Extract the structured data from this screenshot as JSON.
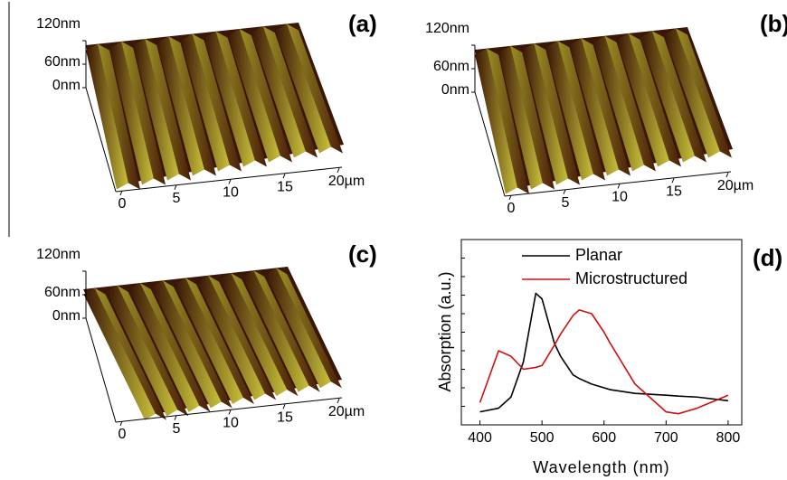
{
  "panels": [
    {
      "label": "(a)",
      "z_ticks": [
        "120nm",
        "60nm",
        "0nm"
      ],
      "x_ticks": [
        "0",
        "5",
        "10",
        "15",
        "20µm"
      ]
    },
    {
      "label": "(b)",
      "z_ticks": [
        "120nm",
        "60nm",
        "0nm"
      ],
      "x_ticks": [
        "0",
        "5",
        "10",
        "15",
        "20µm"
      ]
    },
    {
      "label": "(c)",
      "z_ticks": [
        "120nm",
        "60nm",
        "0nm"
      ],
      "x_ticks": [
        "0",
        "5",
        "10",
        "15",
        "20µm"
      ]
    }
  ],
  "chart_data": {
    "type": "line",
    "label": "(d)",
    "xlabel": "Wavelength (nm)",
    "ylabel": "Absorption (a.u.)",
    "xlim": [
      370,
      822
    ],
    "xticks": [
      400,
      500,
      600,
      700,
      800
    ],
    "ylim": [
      0,
      1
    ],
    "legend": "upper left",
    "x": [
      400,
      430,
      450,
      470,
      490,
      500,
      520,
      530,
      550,
      560,
      580,
      600,
      610,
      650,
      700,
      720,
      750,
      800
    ],
    "series": [
      {
        "name": "Planar",
        "color": "#000000",
        "values": [
          0.07,
          0.09,
          0.15,
          0.34,
          0.71,
          0.68,
          0.44,
          0.37,
          0.27,
          0.25,
          0.22,
          0.2,
          0.19,
          0.17,
          0.16,
          0.155,
          0.15,
          0.13
        ]
      },
      {
        "name": "Microstructured",
        "color": "#d01010",
        "values": [
          0.12,
          0.4,
          0.37,
          0.3,
          0.31,
          0.32,
          0.43,
          0.49,
          0.59,
          0.62,
          0.6,
          0.5,
          0.44,
          0.22,
          0.07,
          0.06,
          0.09,
          0.16
        ]
      }
    ]
  }
}
